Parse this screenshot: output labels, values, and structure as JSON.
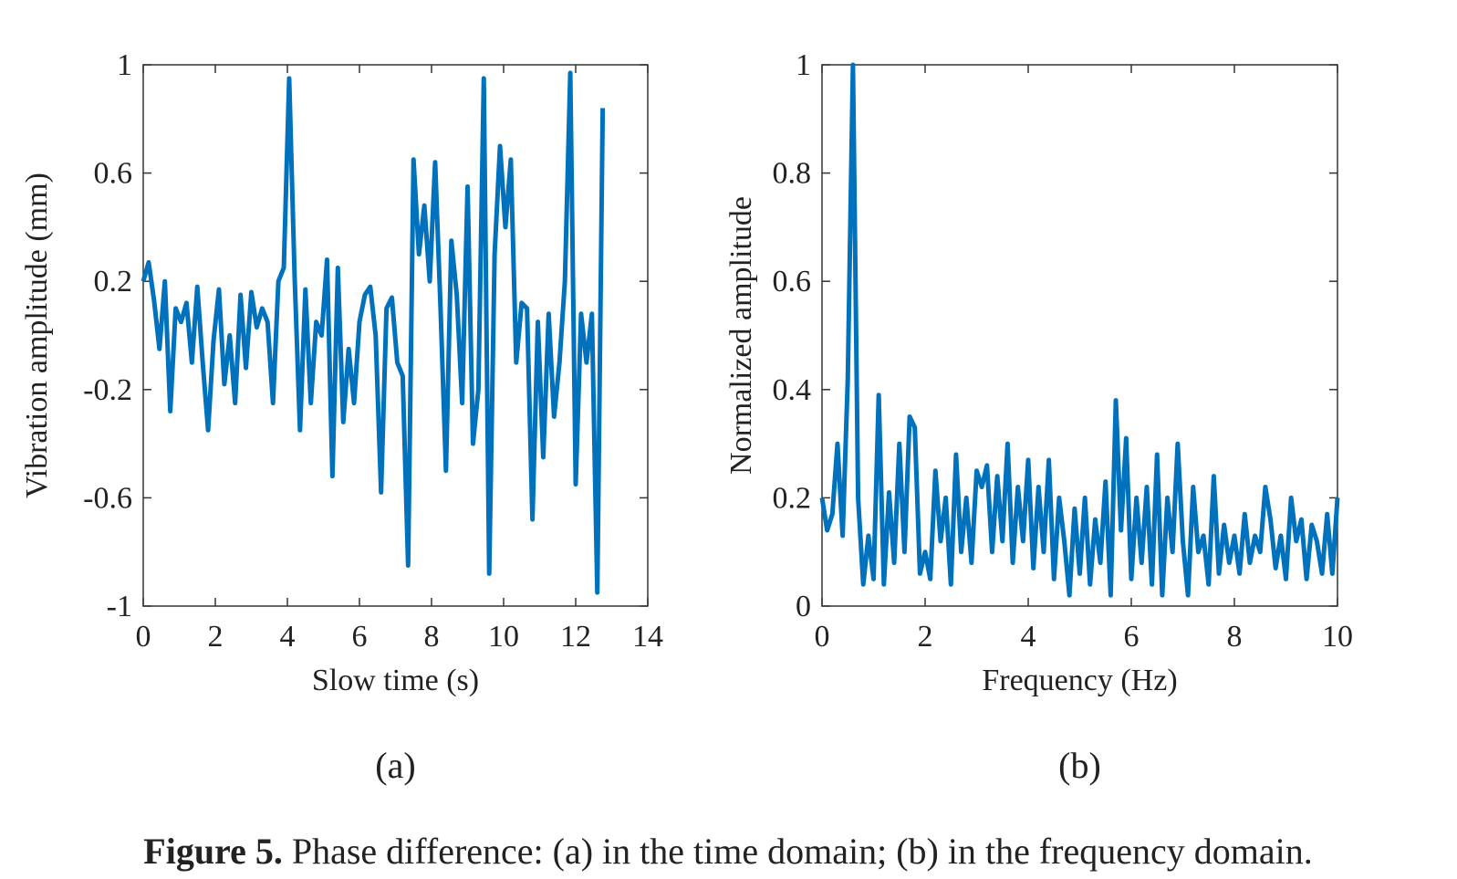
{
  "chart_data": [
    {
      "type": "line",
      "panel_label": "(a)",
      "x_label": "Slow time (s)",
      "y_label": "Vibration amplitude (mm)",
      "xlim": [
        0,
        14
      ],
      "xticks": [
        0,
        2,
        4,
        6,
        8,
        10,
        12,
        14
      ],
      "ylim": [
        -1,
        1
      ],
      "yticks": [
        -1,
        -0.6,
        -0.2,
        0.2,
        0.6,
        1
      ],
      "x": [
        0,
        0.15,
        0.3,
        0.45,
        0.6,
        0.75,
        0.9,
        1.05,
        1.2,
        1.35,
        1.5,
        1.65,
        1.8,
        1.95,
        2.1,
        2.25,
        2.4,
        2.55,
        2.7,
        2.85,
        3.0,
        3.15,
        3.3,
        3.45,
        3.6,
        3.75,
        3.9,
        4.05,
        4.2,
        4.35,
        4.5,
        4.65,
        4.8,
        4.95,
        5.1,
        5.25,
        5.4,
        5.55,
        5.7,
        5.85,
        6.0,
        6.15,
        6.3,
        6.45,
        6.6,
        6.75,
        6.9,
        7.05,
        7.2,
        7.35,
        7.5,
        7.65,
        7.8,
        7.95,
        8.1,
        8.25,
        8.4,
        8.55,
        8.7,
        8.85,
        9.0,
        9.15,
        9.3,
        9.45,
        9.6,
        9.75,
        9.9,
        10.05,
        10.2,
        10.35,
        10.5,
        10.65,
        10.8,
        10.95,
        11.1,
        11.25,
        11.4,
        11.55,
        11.7,
        11.85,
        12.0,
        12.15,
        12.3,
        12.45,
        12.6,
        12.75
      ],
      "series": [
        {
          "color": "#0072bd",
          "values": [
            0.2,
            0.27,
            0.13,
            -0.05,
            0.2,
            -0.28,
            0.1,
            0.05,
            0.12,
            -0.1,
            0.18,
            -0.1,
            -0.35,
            -0.02,
            0.17,
            -0.18,
            0.0,
            -0.25,
            0.15,
            -0.12,
            0.16,
            0.03,
            0.1,
            0.05,
            -0.25,
            0.2,
            0.25,
            0.95,
            0.22,
            -0.35,
            0.17,
            -0.25,
            0.05,
            0.0,
            0.28,
            -0.52,
            0.25,
            -0.32,
            -0.05,
            -0.25,
            0.05,
            0.15,
            0.18,
            0.0,
            -0.58,
            0.1,
            0.14,
            -0.1,
            -0.15,
            -0.85,
            0.65,
            0.3,
            0.48,
            0.2,
            0.64,
            0.1,
            -0.5,
            0.35,
            0.15,
            -0.25,
            0.55,
            -0.4,
            -0.2,
            0.95,
            -0.88,
            0.3,
            0.7,
            0.4,
            0.65,
            -0.1,
            0.12,
            0.1,
            -0.68,
            0.05,
            -0.45,
            0.08,
            -0.3,
            -0.1,
            0.2,
            0.97,
            -0.55,
            0.08,
            -0.1,
            0.08,
            -0.95,
            0.84
          ]
        }
      ]
    },
    {
      "type": "line",
      "panel_label": "(b)",
      "x_label": "Frequency (Hz)",
      "y_label": "Normalized amplitude",
      "xlim": [
        0,
        10
      ],
      "xticks": [
        0,
        2,
        4,
        6,
        8,
        10
      ],
      "ylim": [
        0,
        1
      ],
      "yticks": [
        0,
        0.2,
        0.4,
        0.6,
        0.8,
        1
      ],
      "x": [
        0,
        0.1,
        0.2,
        0.3,
        0.4,
        0.5,
        0.6,
        0.7,
        0.8,
        0.9,
        1.0,
        1.1,
        1.2,
        1.3,
        1.4,
        1.5,
        1.6,
        1.7,
        1.8,
        1.9,
        2.0,
        2.1,
        2.2,
        2.3,
        2.4,
        2.5,
        2.6,
        2.7,
        2.8,
        2.9,
        3.0,
        3.1,
        3.2,
        3.3,
        3.4,
        3.5,
        3.6,
        3.7,
        3.8,
        3.9,
        4.0,
        4.1,
        4.2,
        4.3,
        4.4,
        4.5,
        4.6,
        4.7,
        4.8,
        4.9,
        5.0,
        5.1,
        5.2,
        5.3,
        5.4,
        5.5,
        5.6,
        5.7,
        5.8,
        5.9,
        6.0,
        6.1,
        6.2,
        6.3,
        6.4,
        6.5,
        6.6,
        6.7,
        6.8,
        6.9,
        7.0,
        7.1,
        7.2,
        7.3,
        7.4,
        7.5,
        7.6,
        7.7,
        7.8,
        7.9,
        8.0,
        8.1,
        8.2,
        8.3,
        8.4,
        8.5,
        8.6,
        8.7,
        8.8,
        8.9,
        9.0,
        9.1,
        9.2,
        9.3,
        9.4,
        9.5,
        9.6,
        9.7,
        9.8,
        9.9,
        10.0
      ],
      "series": [
        {
          "color": "#0072bd",
          "values": [
            0.2,
            0.14,
            0.17,
            0.3,
            0.13,
            0.42,
            1.0,
            0.2,
            0.04,
            0.13,
            0.05,
            0.39,
            0.04,
            0.21,
            0.08,
            0.3,
            0.1,
            0.35,
            0.33,
            0.06,
            0.1,
            0.05,
            0.25,
            0.12,
            0.2,
            0.04,
            0.28,
            0.1,
            0.2,
            0.08,
            0.25,
            0.22,
            0.26,
            0.1,
            0.24,
            0.12,
            0.3,
            0.08,
            0.22,
            0.12,
            0.27,
            0.07,
            0.22,
            0.1,
            0.27,
            0.05,
            0.2,
            0.12,
            0.02,
            0.18,
            0.06,
            0.2,
            0.04,
            0.16,
            0.08,
            0.23,
            0.02,
            0.38,
            0.14,
            0.31,
            0.05,
            0.2,
            0.08,
            0.22,
            0.04,
            0.28,
            0.02,
            0.2,
            0.1,
            0.3,
            0.12,
            0.02,
            0.22,
            0.1,
            0.13,
            0.04,
            0.24,
            0.06,
            0.15,
            0.08,
            0.13,
            0.06,
            0.17,
            0.08,
            0.13,
            0.1,
            0.22,
            0.16,
            0.07,
            0.13,
            0.05,
            0.2,
            0.12,
            0.16,
            0.05,
            0.15,
            0.12,
            0.06,
            0.17,
            0.06,
            0.2
          ]
        }
      ]
    }
  ],
  "caption": {
    "label": "Figure 5.",
    "text": "Phase difference: (a) in the time domain; (b) in the frequency domain."
  }
}
